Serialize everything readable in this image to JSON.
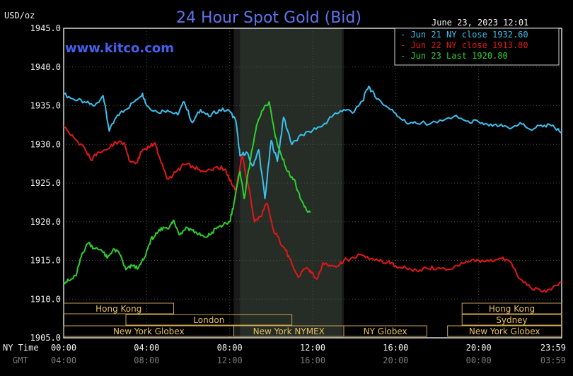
{
  "chart_data": {
    "type": "line",
    "title": "24 Hour Spot Gold (Bid)",
    "site": "www.kitco.com",
    "ylabel": "USD/oz",
    "timestamp": "June 23, 2023 12:01",
    "ylim": [
      1905,
      1945
    ],
    "yticks": [
      "1945.0",
      "1940.0",
      "1935.0",
      "1930.0",
      "1925.0",
      "1920.0",
      "1915.0",
      "1910.0",
      "1905.0"
    ],
    "x_axis_label": "NY Time",
    "x_axis_label2": "GMT",
    "x_ticks_ny": [
      "00:00",
      "04:00",
      "08:00",
      "12:00",
      "16:00",
      "20:00",
      "23:59"
    ],
    "x_ticks_gmt": [
      "04:00",
      "08:00",
      "12:00",
      "16:00",
      "20:00",
      "00:00",
      "03:59"
    ],
    "xlim_hours": [
      0,
      24
    ],
    "shade_hours": [
      8.2,
      13.5
    ],
    "highlight_hours": [
      8.5,
      13.4
    ],
    "series": [
      {
        "name": "Jun 21 NY close 1932.60",
        "color": "#3cc0ee",
        "points": [
          [
            0,
            1936.5
          ],
          [
            0.5,
            1935.8
          ],
          [
            1,
            1935.5
          ],
          [
            1.5,
            1935.0
          ],
          [
            1.9,
            1936.3
          ],
          [
            2.2,
            1931.7
          ],
          [
            2.6,
            1933.8
          ],
          [
            3.0,
            1934.5
          ],
          [
            3.5,
            1935.8
          ],
          [
            3.8,
            1936.6
          ],
          [
            4.0,
            1935.0
          ],
          [
            4.5,
            1934.2
          ],
          [
            5.0,
            1934.4
          ],
          [
            5.5,
            1933.8
          ],
          [
            5.8,
            1935.5
          ],
          [
            6.2,
            1932.8
          ],
          [
            6.6,
            1934.5
          ],
          [
            7.0,
            1933.6
          ],
          [
            7.5,
            1934.5
          ],
          [
            8.0,
            1934.3
          ],
          [
            8.3,
            1933.0
          ],
          [
            8.5,
            1928.5
          ],
          [
            8.8,
            1929.0
          ],
          [
            9.1,
            1927.2
          ],
          [
            9.4,
            1929.3
          ],
          [
            9.7,
            1923.0
          ],
          [
            10.0,
            1930.5
          ],
          [
            10.3,
            1927.8
          ],
          [
            10.6,
            1933.5
          ],
          [
            11.0,
            1930.0
          ],
          [
            11.5,
            1931.2
          ],
          [
            12.0,
            1931.8
          ],
          [
            12.5,
            1932.5
          ],
          [
            13.0,
            1933.8
          ],
          [
            13.5,
            1934.5
          ],
          [
            14.0,
            1934.2
          ],
          [
            14.4,
            1935.6
          ],
          [
            14.7,
            1937.5
          ],
          [
            15.0,
            1936.2
          ],
          [
            15.5,
            1935.0
          ],
          [
            16.0,
            1934.0
          ],
          [
            16.5,
            1932.8
          ],
          [
            17.0,
            1932.7
          ],
          [
            18.0,
            1932.8
          ],
          [
            18.8,
            1933.6
          ],
          [
            19.5,
            1933.0
          ],
          [
            20.0,
            1932.9
          ],
          [
            20.5,
            1932.4
          ],
          [
            21.0,
            1932.4
          ],
          [
            21.5,
            1932.0
          ],
          [
            22.0,
            1932.8
          ],
          [
            22.5,
            1931.9
          ],
          [
            23.0,
            1932.5
          ],
          [
            23.5,
            1932.4
          ],
          [
            23.99,
            1931.5
          ]
        ]
      },
      {
        "name": "Jun 22 NY close 1913.80",
        "color": "#e01818",
        "points": [
          [
            0,
            1932.3
          ],
          [
            0.5,
            1930.8
          ],
          [
            1.0,
            1929.6
          ],
          [
            1.3,
            1928.0
          ],
          [
            1.7,
            1929.0
          ],
          [
            2.2,
            1929.5
          ],
          [
            2.5,
            1930.3
          ],
          [
            2.9,
            1930.2
          ],
          [
            3.2,
            1927.8
          ],
          [
            3.5,
            1927.6
          ],
          [
            3.8,
            1929.3
          ],
          [
            4.2,
            1929.8
          ],
          [
            4.4,
            1930.2
          ],
          [
            4.7,
            1927.6
          ],
          [
            5.0,
            1925.5
          ],
          [
            5.4,
            1926.4
          ],
          [
            5.8,
            1927.4
          ],
          [
            6.2,
            1927.2
          ],
          [
            6.6,
            1926.5
          ],
          [
            7.0,
            1926.8
          ],
          [
            7.4,
            1927.1
          ],
          [
            7.8,
            1926.8
          ],
          [
            8.0,
            1925.3
          ],
          [
            8.3,
            1924.2
          ],
          [
            8.6,
            1928.5
          ],
          [
            8.9,
            1924.7
          ],
          [
            9.2,
            1920.0
          ],
          [
            9.5,
            1920.7
          ],
          [
            9.8,
            1922.4
          ],
          [
            10.1,
            1919.0
          ],
          [
            10.4,
            1917.6
          ],
          [
            10.7,
            1916.3
          ],
          [
            11.0,
            1914.5
          ],
          [
            11.3,
            1912.8
          ],
          [
            11.6,
            1913.9
          ],
          [
            11.9,
            1913.7
          ],
          [
            12.2,
            1912.6
          ],
          [
            12.5,
            1914.7
          ],
          [
            12.8,
            1914.4
          ],
          [
            13.2,
            1914.3
          ],
          [
            13.5,
            1915.0
          ],
          [
            14.0,
            1915.3
          ],
          [
            14.3,
            1915.8
          ],
          [
            14.8,
            1915.2
          ],
          [
            15.2,
            1914.9
          ],
          [
            15.6,
            1914.8
          ],
          [
            16.0,
            1914.3
          ],
          [
            16.5,
            1914.0
          ],
          [
            17.0,
            1913.7
          ],
          [
            17.5,
            1914.0
          ],
          [
            18.0,
            1914.0
          ],
          [
            18.5,
            1913.8
          ],
          [
            19.0,
            1914.3
          ],
          [
            19.5,
            1914.8
          ],
          [
            20.0,
            1915.0
          ],
          [
            20.5,
            1914.9
          ],
          [
            21.0,
            1915.3
          ],
          [
            21.5,
            1914.9
          ],
          [
            22.0,
            1912.6
          ],
          [
            22.5,
            1911.5
          ],
          [
            23.0,
            1911.0
          ],
          [
            23.5,
            1911.2
          ],
          [
            23.99,
            1912.2
          ]
        ]
      },
      {
        "name": "Jun 23 Last 1920.80",
        "color": "#2ed02e",
        "points": [
          [
            0,
            1912.2
          ],
          [
            0.3,
            1912.4
          ],
          [
            0.6,
            1913.0
          ],
          [
            0.9,
            1916.0
          ],
          [
            1.2,
            1917.3
          ],
          [
            1.5,
            1916.5
          ],
          [
            1.8,
            1916.4
          ],
          [
            2.1,
            1915.3
          ],
          [
            2.4,
            1916.5
          ],
          [
            2.7,
            1915.8
          ],
          [
            3.0,
            1913.8
          ],
          [
            3.3,
            1914.3
          ],
          [
            3.6,
            1914.0
          ],
          [
            3.9,
            1915.4
          ],
          [
            4.2,
            1917.7
          ],
          [
            4.5,
            1918.5
          ],
          [
            4.8,
            1919.3
          ],
          [
            5.1,
            1919.3
          ],
          [
            5.3,
            1920.2
          ],
          [
            5.6,
            1918.3
          ],
          [
            5.9,
            1919.3
          ],
          [
            6.2,
            1918.9
          ],
          [
            6.5,
            1918.4
          ],
          [
            6.8,
            1918.0
          ],
          [
            7.1,
            1918.4
          ],
          [
            7.4,
            1919.3
          ],
          [
            7.7,
            1919.6
          ],
          [
            8.0,
            1920.0
          ],
          [
            8.2,
            1922.3
          ],
          [
            8.5,
            1926.5
          ],
          [
            8.7,
            1923.0
          ],
          [
            9.0,
            1928.0
          ],
          [
            9.3,
            1932.5
          ],
          [
            9.6,
            1934.4
          ],
          [
            9.9,
            1935.5
          ],
          [
            10.2,
            1931.0
          ],
          [
            10.5,
            1928.5
          ],
          [
            10.8,
            1926.5
          ],
          [
            11.1,
            1925.5
          ],
          [
            11.4,
            1923.0
          ],
          [
            11.7,
            1921.5
          ],
          [
            11.9,
            1921.2
          ]
        ]
      }
    ],
    "sessions": [
      {
        "name": "Hong Kong",
        "row": 1,
        "start": 0,
        "end": 5.3,
        "labelled": true
      },
      {
        "name": "Hong Kong",
        "row": 1,
        "start": 19.2,
        "end": 23.99,
        "labelled": true
      },
      {
        "name": "London",
        "row": 2,
        "start": 3.0,
        "end": 11.0,
        "labelled": true
      },
      {
        "name": "London",
        "row": 2,
        "start": 0,
        "end": 0.0,
        "labelled": false
      },
      {
        "name": "Sydney",
        "row": 2,
        "start": 19.2,
        "end": 23.99,
        "labelled": true
      },
      {
        "name": "New York Globex",
        "row": 3,
        "start": 0.0,
        "end": 8.2,
        "labelled": true
      },
      {
        "name": "New York NYMEX",
        "row": 3,
        "start": 8.2,
        "end": 13.5,
        "labelled": true
      },
      {
        "name": "NY Globex",
        "row": 3,
        "start": 13.5,
        "end": 17.5,
        "labelled": true
      },
      {
        "name": "New York Globex",
        "row": 3,
        "start": 18.5,
        "end": 23.99,
        "labelled": true
      }
    ]
  }
}
